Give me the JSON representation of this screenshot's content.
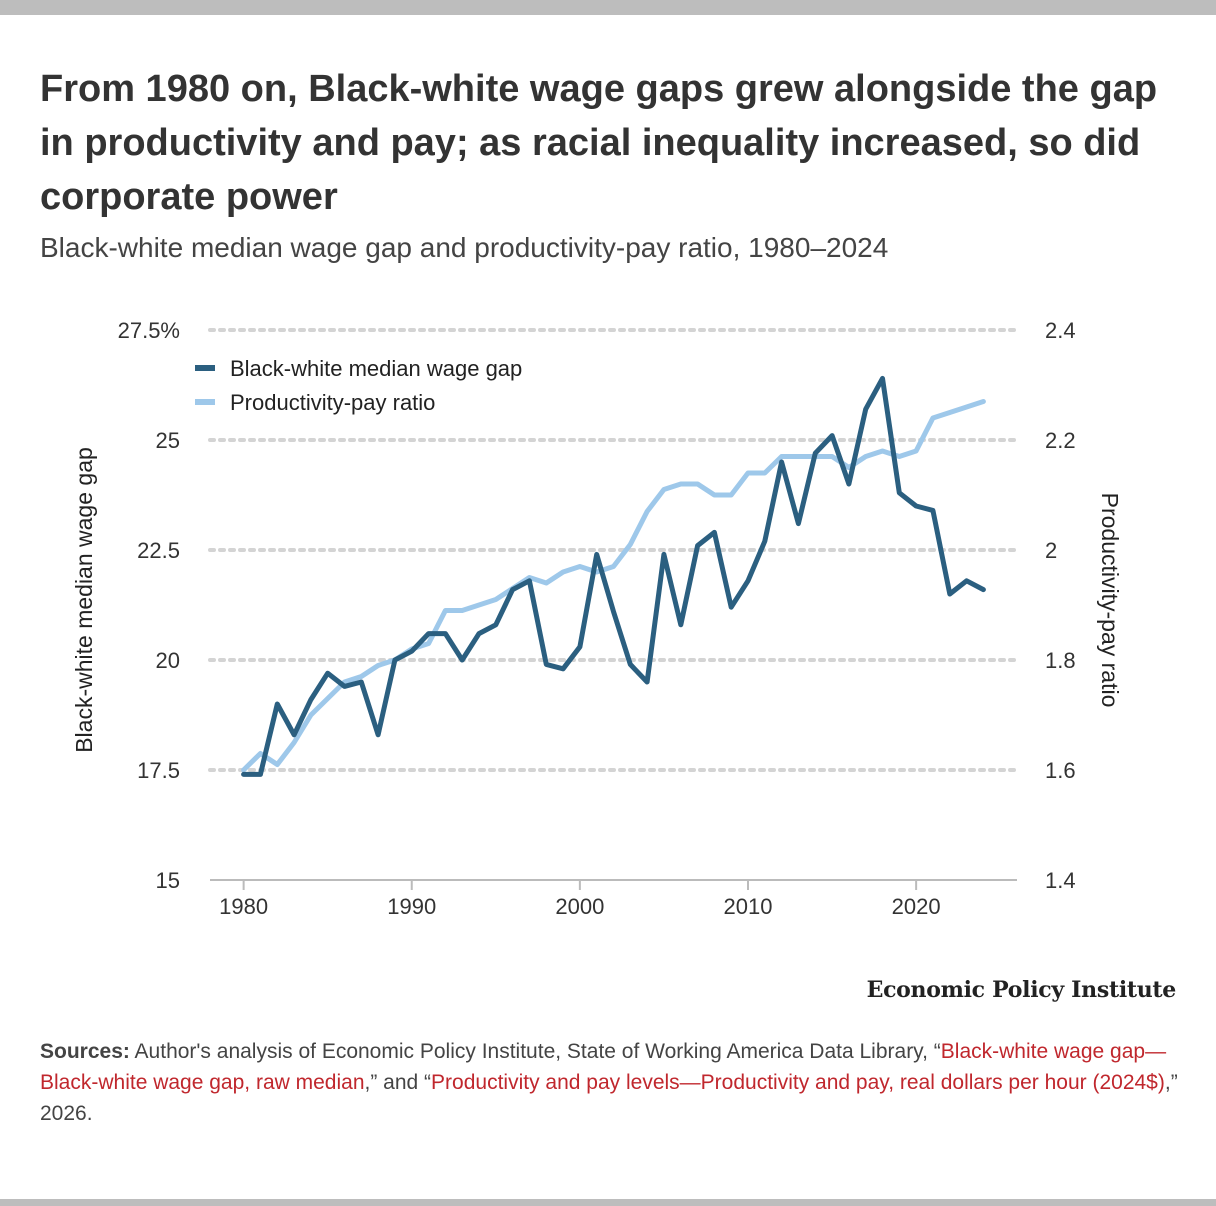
{
  "title": "From 1980 on, Black-white wage gaps grew alongside the gap in productivity and pay; as racial inequality increased, so did corporate power",
  "subtitle": "Black-white median wage gap and productivity-pay ratio, 1980–2024",
  "brand": "Economic Policy Institute",
  "sources": {
    "label": "Sources:",
    "text1": " Author's analysis of Economic Policy Institute, State of Working America Data Library, “",
    "link1": "Black-white wage gap—Black-white wage gap, raw median",
    "text2": ",” and “",
    "link2": "Productivity and pay levels—Productivity and pay, real dollars per hour (2024$)",
    "text3": ",” 2026."
  },
  "colors": {
    "wage_gap": "#2b5f80",
    "ratio": "#9ec8ea",
    "grid": "#d4d4d4",
    "axis": "#bbbbbb"
  },
  "chart_data": {
    "type": "line",
    "title": "Black-white median wage gap and productivity-pay ratio, 1980–2024",
    "legend_position": "top-left",
    "grid": true,
    "x": [
      1980,
      1981,
      1982,
      1983,
      1984,
      1985,
      1986,
      1987,
      1988,
      1989,
      1990,
      1991,
      1992,
      1993,
      1994,
      1995,
      1996,
      1997,
      1998,
      1999,
      2000,
      2001,
      2002,
      2003,
      2004,
      2005,
      2006,
      2007,
      2008,
      2009,
      2010,
      2011,
      2012,
      2013,
      2014,
      2015,
      2016,
      2017,
      2018,
      2019,
      2020,
      2021,
      2022,
      2023,
      2024
    ],
    "xticks": [
      1980,
      1990,
      2000,
      2010,
      2020
    ],
    "xlim": [
      1978,
      2026
    ],
    "y_left": {
      "label": "Black-white median wage gap",
      "ylim": [
        15,
        27.5
      ],
      "ticks": [
        15,
        17.5,
        20,
        22.5,
        25,
        27.5
      ],
      "tick_labels": [
        "15",
        "17.5",
        "20",
        "22.5",
        "25",
        "27.5%"
      ]
    },
    "y_right": {
      "label": "Productivity-pay ratio",
      "ylim": [
        1.4,
        2.4
      ],
      "ticks": [
        1.4,
        1.6,
        1.8,
        2.0,
        2.2,
        2.4
      ],
      "tick_labels": [
        "1.4",
        "1.6",
        "1.8",
        "2",
        "2.2",
        "2.4"
      ]
    },
    "series": [
      {
        "name": "Black-white median wage gap",
        "axis": "left",
        "values": [
          17.4,
          17.4,
          19.0,
          18.3,
          19.1,
          19.7,
          19.4,
          19.5,
          18.3,
          20.0,
          20.2,
          20.6,
          20.6,
          20.0,
          20.6,
          20.8,
          21.6,
          21.8,
          19.9,
          19.8,
          20.3,
          22.4,
          21.1,
          19.9,
          19.5,
          22.4,
          20.8,
          22.6,
          22.9,
          21.2,
          21.8,
          22.7,
          24.5,
          23.1,
          24.7,
          25.1,
          24.0,
          25.7,
          26.4,
          23.8,
          23.5,
          23.4,
          21.5,
          21.8,
          21.6
        ]
      },
      {
        "name": "Productivity-pay ratio",
        "axis": "right",
        "values": [
          1.6,
          1.63,
          1.61,
          1.65,
          1.7,
          1.73,
          1.76,
          1.77,
          1.79,
          1.8,
          1.82,
          1.83,
          1.89,
          1.89,
          1.9,
          1.91,
          1.93,
          1.95,
          1.94,
          1.96,
          1.97,
          1.96,
          1.97,
          2.01,
          2.07,
          2.11,
          2.12,
          2.12,
          2.1,
          2.1,
          2.14,
          2.14,
          2.17,
          2.17,
          2.17,
          2.17,
          2.15,
          2.17,
          2.18,
          2.17,
          2.18,
          2.24,
          2.25,
          2.26,
          2.27
        ]
      }
    ]
  }
}
